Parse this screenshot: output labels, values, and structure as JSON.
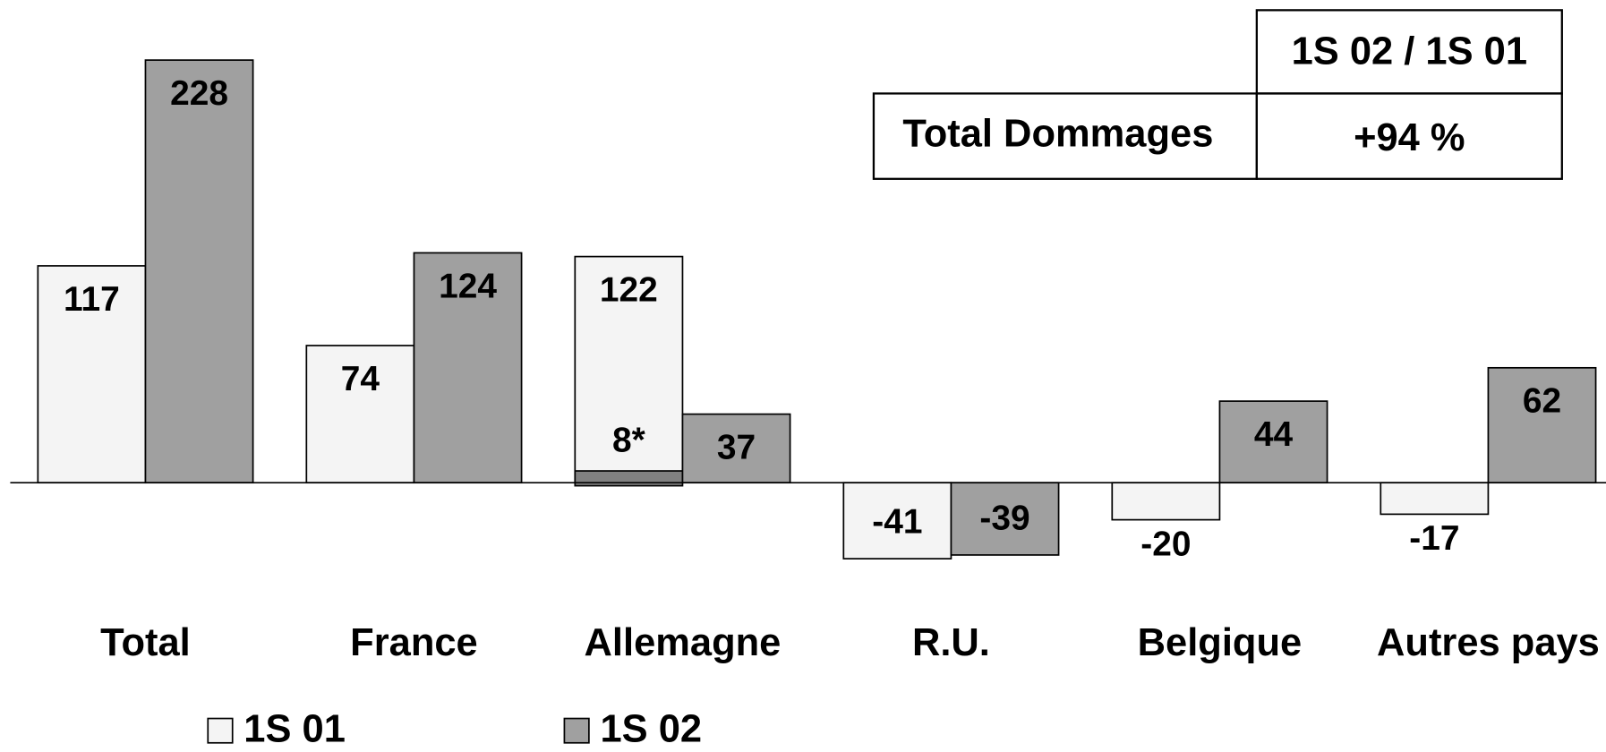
{
  "chart_data": {
    "type": "bar",
    "categories": [
      "Total",
      "France",
      "Allemagne",
      "R.U.",
      "Belgique",
      "Autres pays"
    ],
    "series": [
      {
        "name": "1S 01",
        "color": "#f4f4f4",
        "values": [
          117,
          74,
          122,
          -41,
          -20,
          -17
        ]
      },
      {
        "name": "1S 02",
        "color": "#a0a0a0",
        "values": [
          228,
          124,
          37,
          -39,
          44,
          62
        ]
      }
    ],
    "annotation": {
      "category": "Allemagne",
      "series": "1S 01",
      "value": 8,
      "label": "8*",
      "color": "#808080"
    },
    "table": {
      "header": "1S 02 / 1S 01",
      "row_label": "Total Dommages",
      "row_value": "+94 %"
    }
  }
}
